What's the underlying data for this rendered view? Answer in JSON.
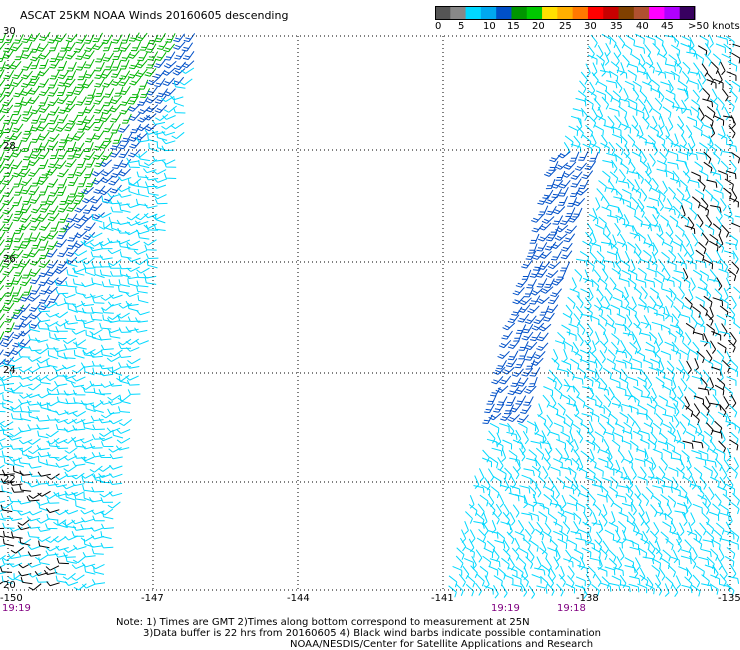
{
  "title": "ASCAT 25KM NOAA Winds 20160605 descending",
  "legend": {
    "colors": [
      "#555555",
      "#888888",
      "#00d8ff",
      "#00a8f0",
      "#0050c8",
      "#009600",
      "#00c800",
      "#ffe000",
      "#ffb000",
      "#ff7800",
      "#ff0000",
      "#c80000",
      "#804000",
      "#b05030",
      "#ff00ff",
      "#b000ff",
      "#380060"
    ],
    "labels": [
      "0",
      "5",
      "10",
      "15",
      "20",
      "25",
      "30",
      "35",
      "40",
      "45",
      ">50 knots"
    ]
  },
  "map": {
    "lon_range": [
      -150,
      -135
    ],
    "lat_range": [
      20,
      30
    ],
    "lat_labels": [
      "30",
      "28",
      "26",
      "24",
      "22",
      "20"
    ],
    "lon_labels": [
      "-150",
      "-147",
      "-144",
      "-141",
      "-138",
      "-135"
    ]
  },
  "times": [
    "19:19",
    "19:19",
    "19:18"
  ],
  "notes": {
    "line1": "Note: 1) Times are GMT 2)Times along bottom correspond to measurement at 25N",
    "line2": "3)Data buffer is 22 hrs from 20160605 4) Black wind barbs indicate possible contamination",
    "line3": "NOAA/NESDIS/Center for Satellite Applications and Research"
  },
  "wind_colors": {
    "calm": "#00d8ff",
    "moderate": "#0050c8",
    "strong": "#00b400",
    "contaminated": "#000000"
  }
}
